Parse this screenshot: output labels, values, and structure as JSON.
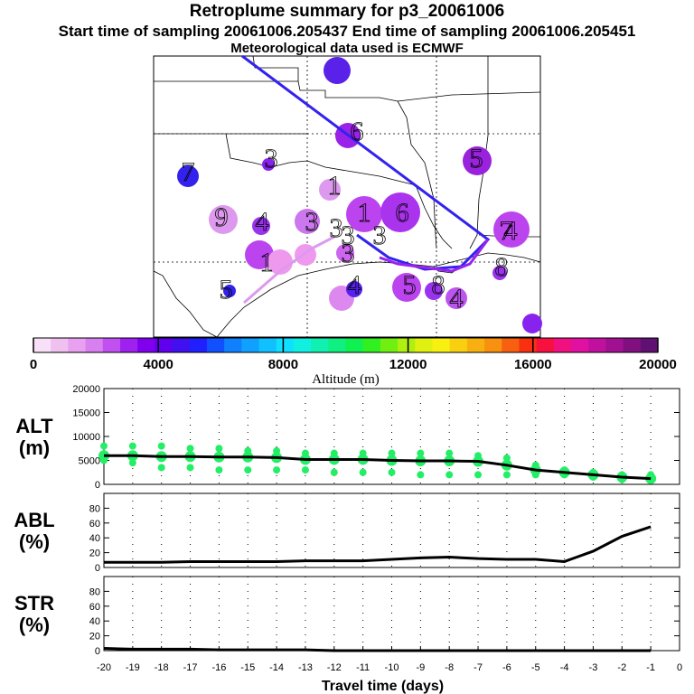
{
  "titles": {
    "line1": "Retroplume summary for p3_20061006",
    "line2": "Start time of sampling 20061006.205437     End time of sampling 20061006.205451",
    "line3": "Meteorological data used is ECMWF"
  },
  "colors": {
    "trajectory_main": "#3322ee",
    "trajectory_low": "#dd99ee",
    "scatter": "#22ee66",
    "line": "#000000"
  },
  "chart_data": [
    {
      "type": "map",
      "title": "Retroplume cluster map",
      "cluster_labels": [
        "6",
        "3",
        "7",
        "9",
        "4",
        "1",
        "3",
        "3",
        "1",
        "6",
        "1",
        "3",
        "3",
        "5",
        "4",
        "5",
        "3",
        "4",
        "4",
        "7",
        "5",
        "8",
        "8"
      ]
    },
    {
      "type": "colorbar",
      "xlabel": "Altitude (m)",
      "range": [
        0,
        20000
      ],
      "tick_labels": [
        "0",
        "4000",
        "8000",
        "12000",
        "16000",
        "20000"
      ]
    },
    {
      "type": "scatter",
      "panel": "ALT",
      "ylabel_line1": "ALT",
      "ylabel_line2": "(m)",
      "ylim": [
        0,
        20000
      ],
      "yticks": [
        "0",
        "5000",
        "10000",
        "15000",
        "20000"
      ],
      "x": [
        -20,
        -19,
        -18,
        -17,
        -16,
        -15,
        -14,
        -13,
        -12,
        -11,
        -10,
        -9,
        -8,
        -7,
        -6,
        -5,
        -4,
        -3,
        -2,
        -1
      ],
      "mean": [
        6000,
        6000,
        5800,
        5800,
        5700,
        5700,
        5600,
        5200,
        5200,
        5200,
        5000,
        4900,
        4900,
        4800,
        4000,
        3000,
        2500,
        2000,
        1500,
        1200
      ],
      "upper": [
        8000,
        8000,
        8000,
        7500,
        7500,
        7000,
        7000,
        6500,
        6500,
        6500,
        6500,
        6500,
        6500,
        6000,
        5500,
        4000,
        3000,
        2500,
        2000,
        2000
      ],
      "lower": [
        5000,
        4500,
        3500,
        3500,
        3000,
        3000,
        3000,
        3000,
        2500,
        2500,
        2500,
        2000,
        2000,
        2000,
        2000,
        2000,
        2000,
        1500,
        1000,
        1000
      ]
    },
    {
      "type": "line",
      "panel": "ABL",
      "ylabel_line1": "ABL",
      "ylabel_line2": "(%)",
      "ylim": [
        0,
        100
      ],
      "yticks": [
        "0",
        "20",
        "40",
        "60",
        "80"
      ],
      "x": [
        -20,
        -19,
        -18,
        -17,
        -16,
        -15,
        -14,
        -13,
        -12,
        -11,
        -10,
        -9,
        -8,
        -7,
        -6,
        -5,
        -4,
        -3,
        -2,
        -1
      ],
      "values": [
        7,
        7,
        7,
        8,
        8,
        8,
        8,
        9,
        9,
        9,
        11,
        13,
        14,
        12,
        11,
        11,
        8,
        22,
        42,
        55
      ]
    },
    {
      "type": "line",
      "panel": "STR",
      "ylabel_line1": "STR",
      "ylabel_line2": "(%)",
      "ylim": [
        0,
        100
      ],
      "yticks": [
        "0",
        "20",
        "40",
        "60",
        "80"
      ],
      "x": [
        -20,
        -19,
        -18,
        -17,
        -16,
        -15,
        -14,
        -13,
        -12,
        -11,
        -10,
        -9,
        -8,
        -7,
        -6,
        -5,
        -4,
        -3,
        -2,
        -1
      ],
      "values": [
        3,
        2,
        2,
        2,
        1,
        1,
        1,
        1,
        0,
        0,
        0,
        0,
        0,
        0,
        0,
        0,
        0,
        0,
        0,
        0
      ]
    },
    {
      "type": "axis",
      "xlabel": "Travel time (days)",
      "xticks": [
        "-20",
        "-19",
        "-18",
        "-17",
        "-16",
        "-15",
        "-14",
        "-13",
        "-12",
        "-11",
        "-10",
        "-9",
        "-8",
        "-7",
        "-6",
        "-5",
        "-4",
        "-3",
        "-2",
        "-1",
        "0"
      ]
    }
  ]
}
